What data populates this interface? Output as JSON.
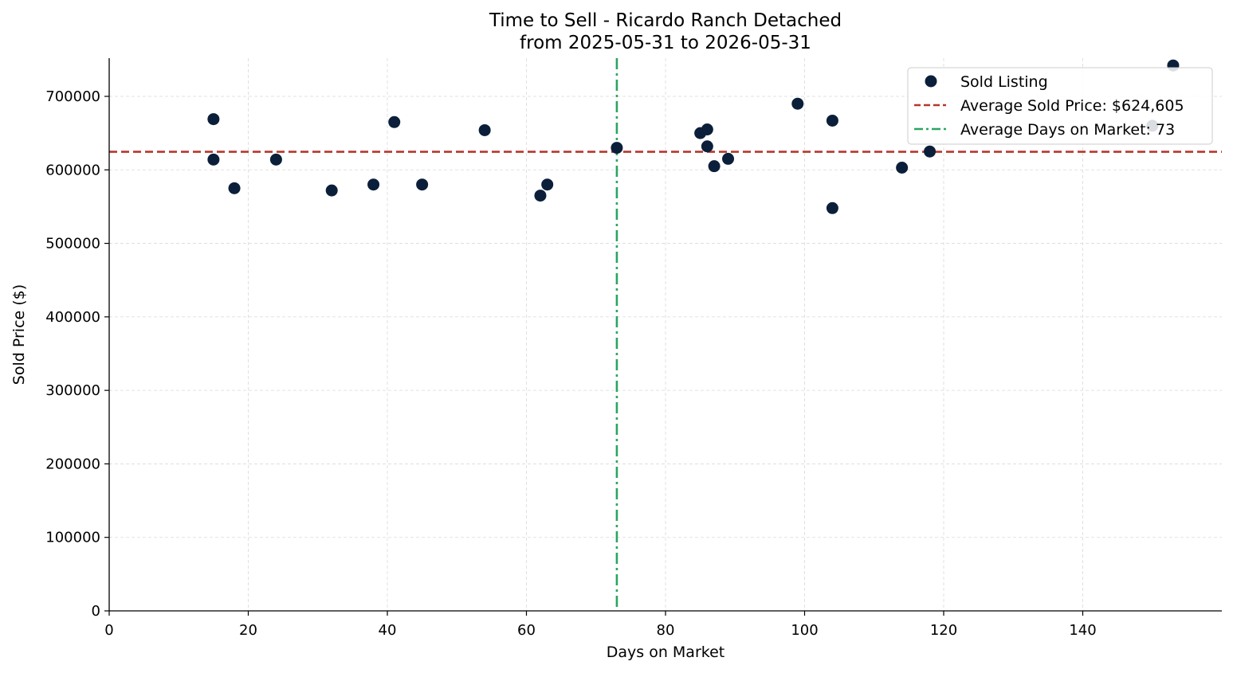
{
  "chart_data": {
    "type": "scatter",
    "title": "Time to Sell - Ricardo Ranch Detached",
    "subtitle": "from 2025-05-31 to 2026-05-31",
    "xlabel": "Days on Market",
    "ylabel": "Sold Price ($)",
    "xlim": [
      0,
      160
    ],
    "ylim": [
      0,
      752000
    ],
    "x_ticks": [
      0,
      20,
      40,
      60,
      80,
      100,
      120,
      140
    ],
    "y_ticks": [
      0,
      100000,
      200000,
      300000,
      400000,
      500000,
      600000,
      700000
    ],
    "grid": true,
    "legend_position": "top-right",
    "series": [
      {
        "name": "Sold Listing",
        "color": "#0b1f3a",
        "points": [
          {
            "x": 15,
            "y": 669000
          },
          {
            "x": 15,
            "y": 614000
          },
          {
            "x": 18,
            "y": 575000
          },
          {
            "x": 24,
            "y": 614000
          },
          {
            "x": 32,
            "y": 572000
          },
          {
            "x": 38,
            "y": 580000
          },
          {
            "x": 41,
            "y": 665000
          },
          {
            "x": 45,
            "y": 580000
          },
          {
            "x": 54,
            "y": 654000
          },
          {
            "x": 62,
            "y": 565000
          },
          {
            "x": 63,
            "y": 580000
          },
          {
            "x": 73,
            "y": 630000
          },
          {
            "x": 85,
            "y": 650000
          },
          {
            "x": 86,
            "y": 655000
          },
          {
            "x": 86,
            "y": 632000
          },
          {
            "x": 87,
            "y": 605000
          },
          {
            "x": 89,
            "y": 615000
          },
          {
            "x": 99,
            "y": 690000
          },
          {
            "x": 104,
            "y": 667000
          },
          {
            "x": 104,
            "y": 548000
          },
          {
            "x": 114,
            "y": 603000
          },
          {
            "x": 118,
            "y": 625000
          },
          {
            "x": 150,
            "y": 660000
          },
          {
            "x": 153,
            "y": 742000
          }
        ]
      }
    ],
    "reference_lines": [
      {
        "name": "Average Sold Price: $624,605",
        "orientation": "horizontal",
        "value": 624605,
        "color": "#b5372b",
        "style": "dashed"
      },
      {
        "name": "Average Days on Market: 73",
        "orientation": "vertical",
        "value": 73,
        "color": "#2aa562",
        "style": "dashdot"
      }
    ]
  }
}
